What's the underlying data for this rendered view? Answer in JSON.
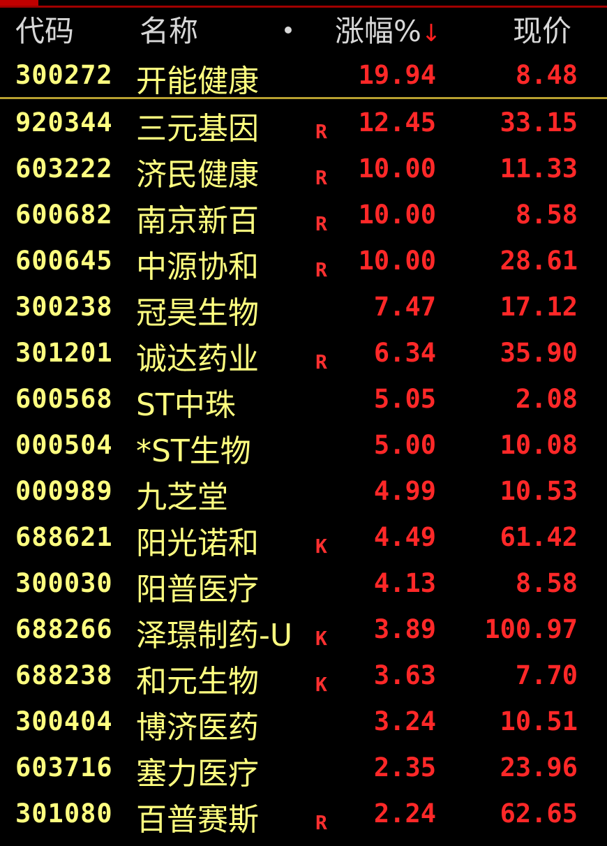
{
  "header": {
    "code": "代码",
    "name": "名称",
    "change": "涨幅%",
    "sort_arrow": "↓",
    "price": "现价"
  },
  "colors": {
    "code": "#ffff80",
    "up": "#ff2828",
    "header": "#d8d8d8",
    "divider": "#b8a030"
  },
  "rows": [
    {
      "code": "300272",
      "name": "开能健康",
      "flag": "",
      "change": "19.94",
      "price": "8.48"
    },
    {
      "code": "920344",
      "name": "三元基因",
      "flag": "R",
      "change": "12.45",
      "price": "33.15"
    },
    {
      "code": "603222",
      "name": "济民健康",
      "flag": "R",
      "change": "10.00",
      "price": "11.33"
    },
    {
      "code": "600682",
      "name": "南京新百",
      "flag": "R",
      "change": "10.00",
      "price": "8.58"
    },
    {
      "code": "600645",
      "name": "中源协和",
      "flag": "R",
      "change": "10.00",
      "price": "28.61"
    },
    {
      "code": "300238",
      "name": "冠昊生物",
      "flag": "",
      "change": "7.47",
      "price": "17.12"
    },
    {
      "code": "301201",
      "name": "诚达药业",
      "flag": "R",
      "change": "6.34",
      "price": "35.90"
    },
    {
      "code": "600568",
      "name": "ST中珠",
      "flag": "",
      "change": "5.05",
      "price": "2.08"
    },
    {
      "code": "000504",
      "name": "*ST生物",
      "flag": "",
      "change": "5.00",
      "price": "10.08"
    },
    {
      "code": "000989",
      "name": "九芝堂",
      "flag": "",
      "change": "4.99",
      "price": "10.53"
    },
    {
      "code": "688621",
      "name": "阳光诺和",
      "flag": "K",
      "change": "4.49",
      "price": "61.42"
    },
    {
      "code": "300030",
      "name": "阳普医疗",
      "flag": "",
      "change": "4.13",
      "price": "8.58"
    },
    {
      "code": "688266",
      "name": "泽璟制药-U",
      "flag": "K",
      "change": "3.89",
      "price": "100.97"
    },
    {
      "code": "688238",
      "name": "和元生物",
      "flag": "K",
      "change": "3.63",
      "price": "7.70"
    },
    {
      "code": "300404",
      "name": "博济医药",
      "flag": "",
      "change": "3.24",
      "price": "10.51"
    },
    {
      "code": "603716",
      "name": "塞力医疗",
      "flag": "",
      "change": "2.35",
      "price": "23.96"
    },
    {
      "code": "301080",
      "name": "百普赛斯",
      "flag": "R",
      "change": "2.24",
      "price": "62.65"
    }
  ]
}
